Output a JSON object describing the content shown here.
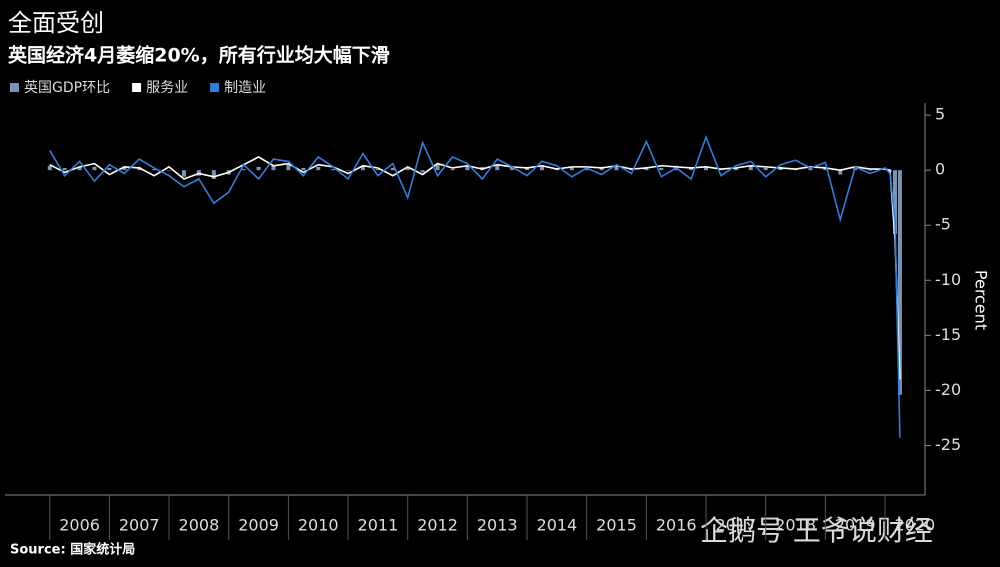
{
  "chart_data": {
    "type": "line-bar",
    "title": "全面受创",
    "subtitle": "英国经济4月萎缩20%，所有行业均大幅下滑",
    "y_label": "Percent",
    "source": "Source: 国家统计局",
    "watermark": "企鹅号 王爷说财经",
    "x": [
      2006,
      2006.25,
      2006.5,
      2006.75,
      2007,
      2007.25,
      2007.5,
      2007.75,
      2008,
      2008.25,
      2008.5,
      2008.75,
      2009,
      2009.25,
      2009.5,
      2009.75,
      2010,
      2010.25,
      2010.5,
      2010.75,
      2011,
      2011.25,
      2011.5,
      2011.75,
      2012,
      2012.25,
      2012.5,
      2012.75,
      2013,
      2013.25,
      2013.5,
      2013.75,
      2014,
      2014.25,
      2014.5,
      2014.75,
      2015,
      2015.25,
      2015.5,
      2015.75,
      2016,
      2016.25,
      2016.5,
      2016.75,
      2017,
      2017.25,
      2017.5,
      2017.75,
      2018,
      2018.25,
      2018.5,
      2018.75,
      2019,
      2019.25,
      2019.5,
      2019.75,
      2020,
      2020.083,
      2020.167,
      2020.25
    ],
    "series": [
      {
        "name": "英国GDP环比",
        "color": "#7b93b4",
        "kind": "bar",
        "values": [
          0.4,
          0.2,
          0.3,
          0.3,
          0.2,
          0.3,
          0.3,
          0.1,
          0.0,
          -0.6,
          -0.5,
          -0.8,
          -0.4,
          0.1,
          0.3,
          0.4,
          0.5,
          0.2,
          0.3,
          0.1,
          0.0,
          0.4,
          0.1,
          0.2,
          0.3,
          -0.2,
          0.5,
          0.1,
          0.4,
          0.3,
          0.5,
          0.3,
          0.3,
          0.4,
          0.2,
          0.3,
          0.2,
          0.3,
          0.4,
          0.2,
          0.3,
          0.2,
          0.4,
          0.3,
          0.3,
          0.1,
          0.2,
          0.4,
          0.2,
          0.3,
          0.1,
          0.2,
          0.3,
          -0.4,
          0.2,
          0.0,
          0.1,
          -0.1,
          -5.8,
          -20.4
        ]
      },
      {
        "name": "服务业",
        "color": "#ffffff",
        "kind": "line",
        "values": [
          0.5,
          -0.2,
          0.3,
          0.6,
          -0.4,
          0.3,
          0.2,
          -0.5,
          0.3,
          -0.8,
          -0.3,
          -0.6,
          -0.2,
          0.5,
          1.2,
          0.4,
          0.6,
          -0.2,
          0.5,
          0.3,
          -0.3,
          0.4,
          0.2,
          -0.5,
          0.3,
          -0.4,
          0.6,
          0.2,
          0.4,
          0.1,
          0.5,
          0.3,
          0.2,
          0.4,
          0.1,
          0.3,
          0.3,
          0.2,
          0.4,
          0.1,
          0.2,
          0.4,
          0.3,
          0.2,
          0.3,
          0.1,
          0.2,
          0.4,
          0.3,
          0.2,
          0.1,
          0.3,
          0.2,
          0.0,
          0.3,
          0.1,
          0.1,
          0.0,
          -6.2,
          -19.0
        ]
      },
      {
        "name": "制造业",
        "color": "#2f7fdc",
        "kind": "line",
        "values": [
          1.8,
          -0.5,
          0.8,
          -1.0,
          0.5,
          -0.3,
          1.0,
          0.2,
          -0.5,
          -1.5,
          -0.8,
          -3.0,
          -2.0,
          0.5,
          -0.8,
          1.0,
          0.8,
          -0.5,
          1.2,
          0.3,
          -0.8,
          1.5,
          -0.5,
          0.6,
          -2.5,
          2.5,
          -0.5,
          1.2,
          0.6,
          -0.8,
          1.0,
          0.3,
          -0.5,
          0.8,
          0.4,
          -0.6,
          0.2,
          -0.4,
          0.5,
          -0.3,
          2.6,
          -0.6,
          0.2,
          -0.8,
          3.0,
          -0.5,
          0.4,
          0.8,
          -0.6,
          0.5,
          0.9,
          0.2,
          0.7,
          -4.5,
          0.3,
          -0.3,
          0.2,
          -0.3,
          -4.6,
          -24.3
        ]
      }
    ],
    "xlim": [
      2005.25,
      2020.67
    ],
    "xticks": [
      {
        "value": 2006,
        "label": "2006"
      },
      {
        "value": 2007,
        "label": "2007"
      },
      {
        "value": 2008,
        "label": "2008"
      },
      {
        "value": 2009,
        "label": "2009"
      },
      {
        "value": 2010,
        "label": "2010"
      },
      {
        "value": 2011,
        "label": "2011"
      },
      {
        "value": 2012,
        "label": "2012"
      },
      {
        "value": 2013,
        "label": "2013"
      },
      {
        "value": 2014,
        "label": "2014"
      },
      {
        "value": 2015,
        "label": "2015"
      },
      {
        "value": 2016,
        "label": "2016"
      },
      {
        "value": 2017,
        "label": "2017"
      },
      {
        "value": 2018,
        "label": "2018"
      },
      {
        "value": 2019,
        "label": "2019"
      },
      {
        "value": 2020,
        "label": "2020"
      }
    ],
    "ylim": [
      -29.5,
      6.1
    ],
    "yticks": [
      5,
      0,
      -5,
      -10,
      -15,
      -20,
      -25
    ]
  }
}
